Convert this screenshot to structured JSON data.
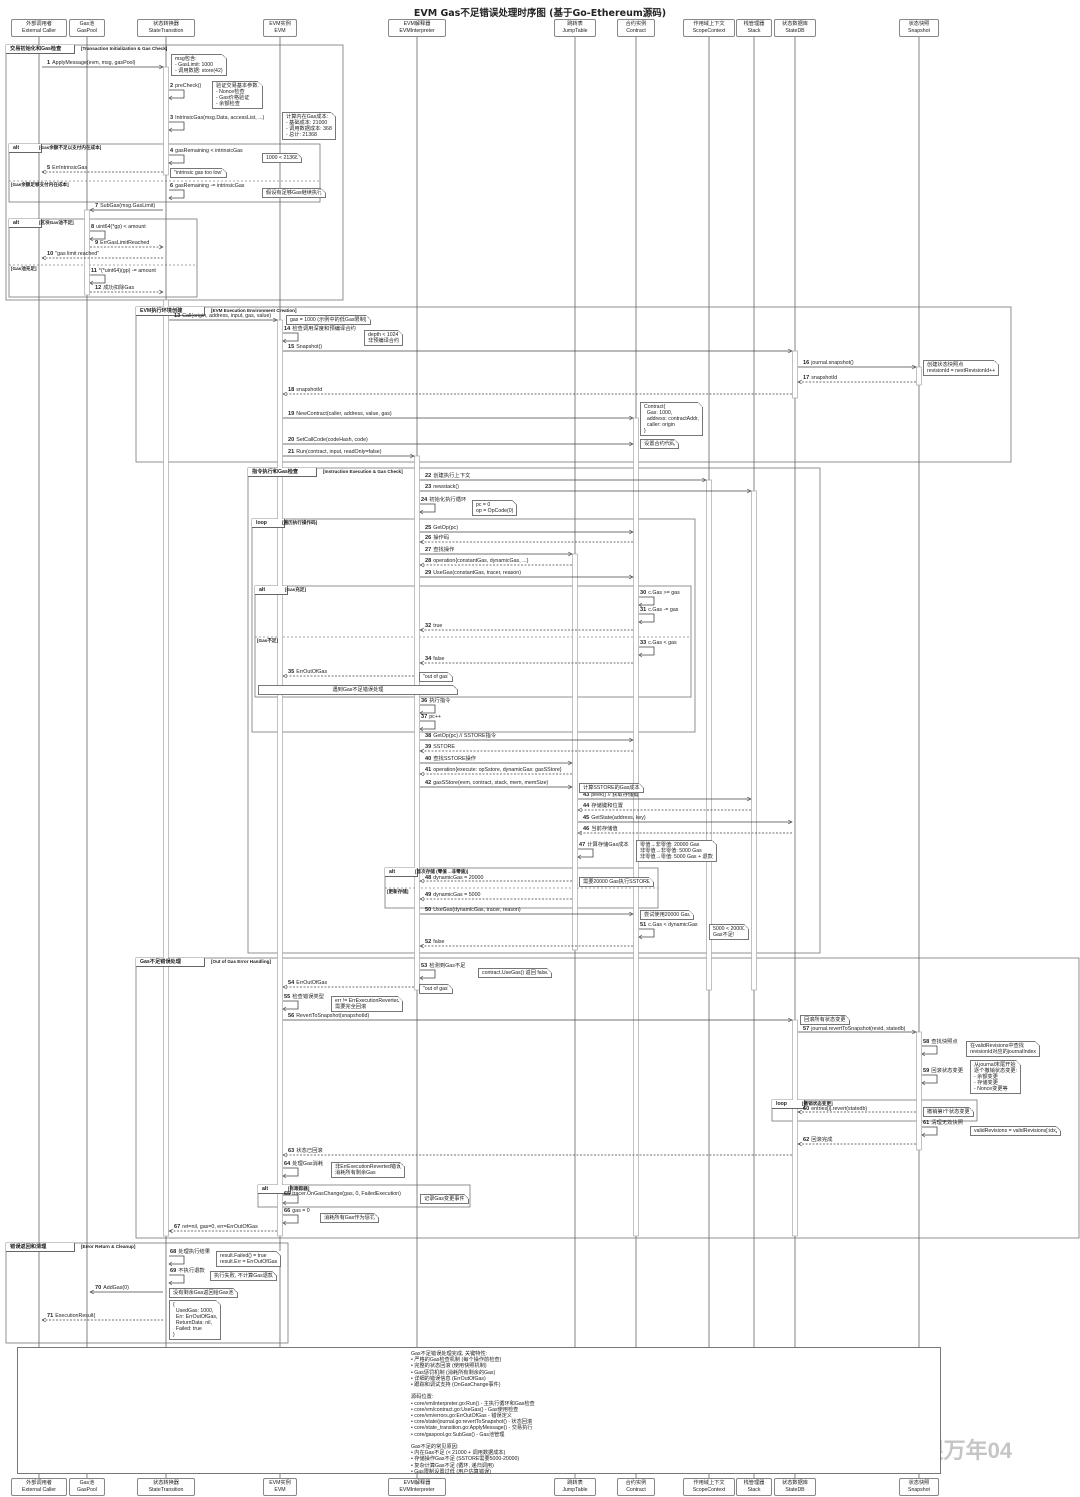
{
  "title": "EVM Gas不足错误处理时序图 (基于Go-Ethereum源码)",
  "participants": [
    {
      "id": "caller",
      "name_cn": "外部调用者",
      "name_en": "External Caller"
    },
    {
      "id": "gaspool",
      "name_cn": "Gas池",
      "name_en": "GasPool"
    },
    {
      "id": "st",
      "name_cn": "状态转换器",
      "name_en": "StateTransition"
    },
    {
      "id": "evm",
      "name_cn": "EVM实例",
      "name_en": "EVM"
    },
    {
      "id": "interp",
      "name_cn": "EVM解释器",
      "name_en": "EVMInterpreter"
    },
    {
      "id": "jt",
      "name_cn": "跳转表",
      "name_en": "JumpTable"
    },
    {
      "id": "contract",
      "name_cn": "合约实例",
      "name_en": "Contract"
    },
    {
      "id": "scope",
      "name_cn": "作用域上下文",
      "name_en": "ScopeContext"
    },
    {
      "id": "stack",
      "name_cn": "栈管理器",
      "name_en": "Stack"
    },
    {
      "id": "statedb",
      "name_cn": "状态数据库",
      "name_en": "StateDB"
    },
    {
      "id": "snapshot",
      "name_cn": "状态快照",
      "name_en": "Snapshot"
    }
  ],
  "messages": [
    {
      "n": "1",
      "from": "caller",
      "to": "st",
      "label": "ApplyMessage(evm, msg, gasPool)"
    },
    {
      "n": "2",
      "from": "st",
      "to": "st",
      "label": "preCheck()"
    },
    {
      "n": "3",
      "from": "st",
      "to": "st",
      "label": "IntrinsicGas(msg.Data, accessList, ...)"
    },
    {
      "n": "4",
      "from": "st",
      "to": "st",
      "label": "gasRemaining < intrinsicGas"
    },
    {
      "n": "5",
      "from": "st",
      "to": "caller",
      "label": "ErrIntrinsicGas",
      "type": "return"
    },
    {
      "n": "6",
      "from": "st",
      "to": "st",
      "label": "gasRemaining -= intrinsicGas"
    },
    {
      "n": "7",
      "from": "st",
      "to": "gaspool",
      "label": "SubGas(msg.GasLimit)"
    },
    {
      "n": "8",
      "from": "gaspool",
      "to": "gaspool",
      "label": "uint64(*gp) < amount"
    },
    {
      "n": "9",
      "from": "gaspool",
      "to": "st",
      "label": "ErrGasLimitReached",
      "type": "return"
    },
    {
      "n": "10",
      "from": "st",
      "to": "caller",
      "label": "\"gas limit reached\"",
      "type": "return"
    },
    {
      "n": "11",
      "from": "gaspool",
      "to": "gaspool",
      "label": "*(*uint64)(gp) -= amount"
    },
    {
      "n": "12",
      "from": "gaspool",
      "to": "st",
      "label": "成功扣除Gas",
      "type": "return"
    },
    {
      "n": "13",
      "from": "st",
      "to": "evm",
      "label": "Call(origin, address, input, gas, value)"
    },
    {
      "n": "14",
      "from": "evm",
      "to": "evm",
      "label": "检查调用深度和预编译合约"
    },
    {
      "n": "15",
      "from": "evm",
      "to": "statedb",
      "label": "Snapshot()"
    },
    {
      "n": "16",
      "from": "statedb",
      "to": "snapshot",
      "label": "journal.snapshot()"
    },
    {
      "n": "17",
      "from": "snapshot",
      "to": "statedb",
      "label": "snapshotId",
      "type": "return"
    },
    {
      "n": "18",
      "from": "statedb",
      "to": "evm",
      "label": "snapshotId",
      "type": "return"
    },
    {
      "n": "19",
      "from": "evm",
      "to": "contract",
      "label": "NewContract(caller, address, value, gas)"
    },
    {
      "n": "20",
      "from": "evm",
      "to": "contract",
      "label": "SetCallCode(codeHash, code)"
    },
    {
      "n": "21",
      "from": "evm",
      "to": "interp",
      "label": "Run(contract, input, readOnly=false)"
    },
    {
      "n": "22",
      "from": "interp",
      "to": "scope",
      "label": "创建执行上下文"
    },
    {
      "n": "23",
      "from": "interp",
      "to": "stack",
      "label": "newstack()"
    },
    {
      "n": "24",
      "from": "interp",
      "to": "interp",
      "label": "初始化执行循环"
    },
    {
      "n": "25",
      "from": "interp",
      "to": "contract",
      "label": "GetOp(pc)"
    },
    {
      "n": "26",
      "from": "contract",
      "to": "interp",
      "label": "操作码",
      "type": "return"
    },
    {
      "n": "27",
      "from": "interp",
      "to": "jt",
      "label": "查找操作"
    },
    {
      "n": "28",
      "from": "jt",
      "to": "interp",
      "label": "operation{constantGas, dynamicGas, ...}",
      "type": "return"
    },
    {
      "n": "29",
      "from": "interp",
      "to": "contract",
      "label": "UseGas(constantGas, tracer, reason)"
    },
    {
      "n": "30",
      "from": "contract",
      "to": "contract",
      "label": "c.Gas >= gas"
    },
    {
      "n": "31",
      "from": "contract",
      "to": "contract",
      "label": "c.Gas -= gas"
    },
    {
      "n": "32",
      "from": "contract",
      "to": "interp",
      "label": "true",
      "type": "return"
    },
    {
      "n": "33",
      "from": "contract",
      "to": "contract",
      "label": "c.Gas < gas"
    },
    {
      "n": "34",
      "from": "contract",
      "to": "interp",
      "label": "false",
      "type": "return"
    },
    {
      "n": "35",
      "from": "interp",
      "to": "evm",
      "label": "ErrOutOfGas",
      "type": "return"
    },
    {
      "n": "36",
      "from": "interp",
      "to": "interp",
      "label": "执行指令"
    },
    {
      "n": "37",
      "from": "interp",
      "to": "interp",
      "label": "pc++"
    },
    {
      "n": "38",
      "from": "interp",
      "to": "contract",
      "label": "GetOp(pc) // SSTORE指令"
    },
    {
      "n": "39",
      "from": "contract",
      "to": "interp",
      "label": "SSTORE",
      "type": "return"
    },
    {
      "n": "40",
      "from": "interp",
      "to": "jt",
      "label": "查找SSTORE操作"
    },
    {
      "n": "41",
      "from": "jt",
      "to": "interp",
      "label": "operation{execute: opSstore, dynamicGas: gasSStore}",
      "type": "return"
    },
    {
      "n": "42",
      "from": "interp",
      "to": "jt",
      "label": "gasSStore(evm, contract, stack, mem, memSize)"
    },
    {
      "n": "43",
      "from": "jt",
      "to": "stack",
      "label": "peek() // 获取存储键"
    },
    {
      "n": "44",
      "from": "stack",
      "to": "jt",
      "label": "存储键和位置",
      "type": "return"
    },
    {
      "n": "45",
      "from": "jt",
      "to": "statedb",
      "label": "GetState(address, key)"
    },
    {
      "n": "46",
      "from": "statedb",
      "to": "jt",
      "label": "当前存储值",
      "type": "return"
    },
    {
      "n": "47",
      "from": "jt",
      "to": "jt",
      "label": "计算存储Gas成本"
    },
    {
      "n": "48",
      "from": "jt",
      "to": "interp",
      "label": "dynamicGas = 20000",
      "type": "return"
    },
    {
      "n": "49",
      "from": "jt",
      "to": "interp",
      "label": "dynamicGas = 5000",
      "type": "return"
    },
    {
      "n": "50",
      "from": "interp",
      "to": "contract",
      "label": "UseGas(dynamicGas, tracer, reason)"
    },
    {
      "n": "51",
      "from": "contract",
      "to": "contract",
      "label": "c.Gas < dynamicGas"
    },
    {
      "n": "52",
      "from": "contract",
      "to": "interp",
      "label": "false",
      "type": "return"
    },
    {
      "n": "53",
      "from": "interp",
      "to": "interp",
      "label": "检测到Gas不足"
    },
    {
      "n": "54",
      "from": "interp",
      "to": "evm",
      "label": "ErrOutOfGas",
      "type": "return"
    },
    {
      "n": "55",
      "from": "evm",
      "to": "evm",
      "label": "检查错误类型"
    },
    {
      "n": "56",
      "from": "evm",
      "to": "statedb",
      "label": "RevertToSnapshot(snapshotId)"
    },
    {
      "n": "57",
      "from": "statedb",
      "to": "snapshot",
      "label": "journal.revertToSnapshot(revid, statedb)"
    },
    {
      "n": "58",
      "from": "snapshot",
      "to": "snapshot",
      "label": "查找快照点"
    },
    {
      "n": "59",
      "from": "snapshot",
      "to": "snapshot",
      "label": "回滚状态变更"
    },
    {
      "n": "60",
      "from": "snapshot",
      "to": "statedb",
      "label": "entries[i].revert(statedb)",
      "type": "return"
    },
    {
      "n": "61",
      "from": "snapshot",
      "to": "snapshot",
      "label": "清理无效快照"
    },
    {
      "n": "62",
      "from": "snapshot",
      "to": "statedb",
      "label": "回滚完成",
      "type": "return"
    },
    {
      "n": "63",
      "from": "statedb",
      "to": "evm",
      "label": "状态已回滚",
      "type": "return"
    },
    {
      "n": "64",
      "from": "evm",
      "to": "evm",
      "label": "处理Gas消耗"
    },
    {
      "n": "65",
      "from": "evm",
      "to": "evm",
      "label": "tracer.OnGasChange(gas, 0, FailedExecution)"
    },
    {
      "n": "66",
      "from": "evm",
      "to": "evm",
      "label": "gas = 0"
    },
    {
      "n": "67",
      "from": "evm",
      "to": "st",
      "label": "ret=nil, gas=0, err=ErrOutOfGas",
      "type": "return"
    },
    {
      "n": "68",
      "from": "st",
      "to": "st",
      "label": "处理执行结果"
    },
    {
      "n": "69",
      "from": "st",
      "to": "st",
      "label": "不执行退款"
    },
    {
      "n": "70",
      "from": "st",
      "to": "gaspool",
      "label": "AddGas(0)"
    },
    {
      "n": "71",
      "from": "st",
      "to": "caller",
      "label": "ExecutionResult{",
      "type": "return"
    }
  ],
  "fragments": [
    {
      "type": "group",
      "label": "交易初始化和Gas检查",
      "guard": "[Transaction Initialization & Gas Check]"
    },
    {
      "type": "alt",
      "label": "alt",
      "guard": "[Gas余额不足以支付内在成本]",
      "else_guard": "[Gas余额足够支付内在成本]"
    },
    {
      "type": "alt",
      "label": "alt",
      "guard": "[区块Gas池不足]",
      "else_guard": "[Gas池充足]"
    },
    {
      "type": "group",
      "label": "EVM执行环境创建",
      "guard": "[EVM Execution Environment Creation]"
    },
    {
      "type": "group",
      "label": "指令执行和Gas检查",
      "guard": "[Instruction Execution & Gas Check]"
    },
    {
      "type": "loop",
      "label": "loop",
      "guard": "[遍历执行操作码]"
    },
    {
      "type": "alt",
      "label": "alt",
      "guard": "[Gas充足]",
      "else_guard": "[Gas不足]"
    },
    {
      "type": "alt",
      "label": "alt",
      "guard": "[首次存储 (零值→非零值)]",
      "else_guard": "[更新存储]"
    },
    {
      "type": "group",
      "label": "Gas不足错误处理",
      "guard": "[Out of Gas Error Handling]"
    },
    {
      "type": "loop",
      "label": "loop",
      "guard": "[撤销状态变更]"
    },
    {
      "type": "alt",
      "label": "alt",
      "guard": "[有跟踪器]"
    },
    {
      "type": "group",
      "label": "错误返回和清理",
      "guard": "[Error Return & Cleanup]"
    }
  ],
  "notes": [
    "msg包含:\n- GasLimit: 1000\n- 调用数据: store(42)",
    "验证交易基本参数:\n- Nonce检查\n- Gas价格验证\n- 余额检查",
    "计算内在Gas成本:\n- 基础成本: 21000\n- 调用数据成本: 368\n- 总计: 21368",
    "1000 < 21368",
    "\"intrinsic gas too low\"",
    "假设有足够Gas继续执行",
    "gas = 1000 (示例中的低Gas限制)",
    "depth < 1024\n非预编译合约",
    "创建状态快照点\nrevisionId = nextRevisionId++",
    "Contract{\n  Gas: 1000,\n  address: contractAddr,\n  caller: origin\n}",
    "设置合约代码",
    "pc = 0\nop = OpCode(0)",
    "\"out of gas\"",
    "遇到Gas不足错误处理",
    "计算SSTORE的Gas成本",
    "零值→非零值: 20000 Gas\n非零值→非零值: 5000 Gas\n非零值→零值: 5000 Gas + 退款",
    "需要20000 Gas执行SSTORE",
    "尝试使用20000 Gas",
    "5000 < 20000\nGas不足!",
    "contract.UseGas() 返回 false",
    "\"out of gas\"",
    "err != ErrExecutionReverted\n需要完全回滚",
    "回滚所有状态变更",
    "在validRevisions中查找\nrevisionId对应的journalIndex",
    "从journal末尾开始\n逐个撤销状态变更:\n- 余额变更\n- 存储变更\n- Nonce变更等",
    "撤销第i个状态变更",
    "validRevisions = validRevisions[:idx]",
    "非ErrExecutionReverted错误\n消耗所有剩余Gas",
    "记录Gas变更事件",
    "消耗所有Gas作为惩罚",
    "result.Failed() = true\nresult.Err = ErrOutOfGas",
    "执行失败, 不计算Gas退款",
    "没有剩余Gas返回给Gas池",
    "{\n  UsedGas: 1000,\n  Err: ErrOutOfGas,\n  ReturnData: nil,\n  Failed: true\n}"
  ],
  "summary_note": "Gas不足错误处理完成, 关键特性:\n• 严格的Gas检查机制 (每个操作前检查)\n• 完整的状态回滚 (使用快照机制)\n• Gas惩罚机制 (消耗所有剩余的Gas)\n• 详细的错误信息 (ErrOutOfGas)\n• 跟踪和调试支持 (OnGasChange事件)\n\n源码位置:\n• core/vm/interpreter.go:Run() - 主执行循环和Gas检查\n• core/vm/contract.go:UseGas() - Gas使用检查\n• core/vm/errors.go:ErrOutOfGas - 错误定义\n• core/state/journal.go:revertToSnapshot() - 状态回滚\n• core/state_transition.go:ApplyMessage() - 交易执行\n• core/gaspool.go:SubGas() - Gas池管理\n\nGas不足的常见原因:\n• 内在Gas不足 (< 21000 + 调用数据成本)\n• 存储操作Gas不足 (SSTORE需要5000-20000)\n• 复杂计算Gas不足 (循环, 递归调用)\n• Gas限制设置过低 (用户估算错误)",
  "watermark": "掘金技术社区 @ 一眼万年04"
}
